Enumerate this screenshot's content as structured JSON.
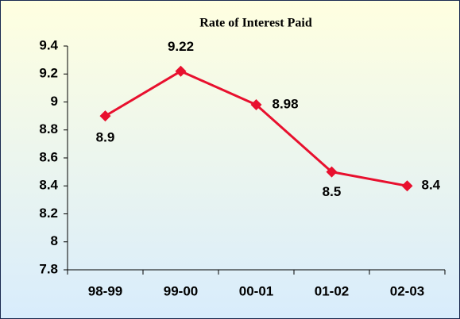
{
  "chart_data": {
    "type": "line",
    "title": "Rate of Interest Paid",
    "categories": [
      "98-99",
      "99-00",
      "00-01",
      "01-02",
      "02-03"
    ],
    "series": [
      {
        "name": "Rate of Interest Paid",
        "color": "#e8102e",
        "values": [
          8.9,
          9.22,
          8.98,
          8.5,
          8.4
        ]
      }
    ],
    "ylim": [
      7.8,
      9.4
    ],
    "yticks": [
      7.8,
      8,
      8.2,
      8.4,
      8.6,
      8.8,
      9,
      9.2,
      9.4
    ],
    "grid": false
  }
}
